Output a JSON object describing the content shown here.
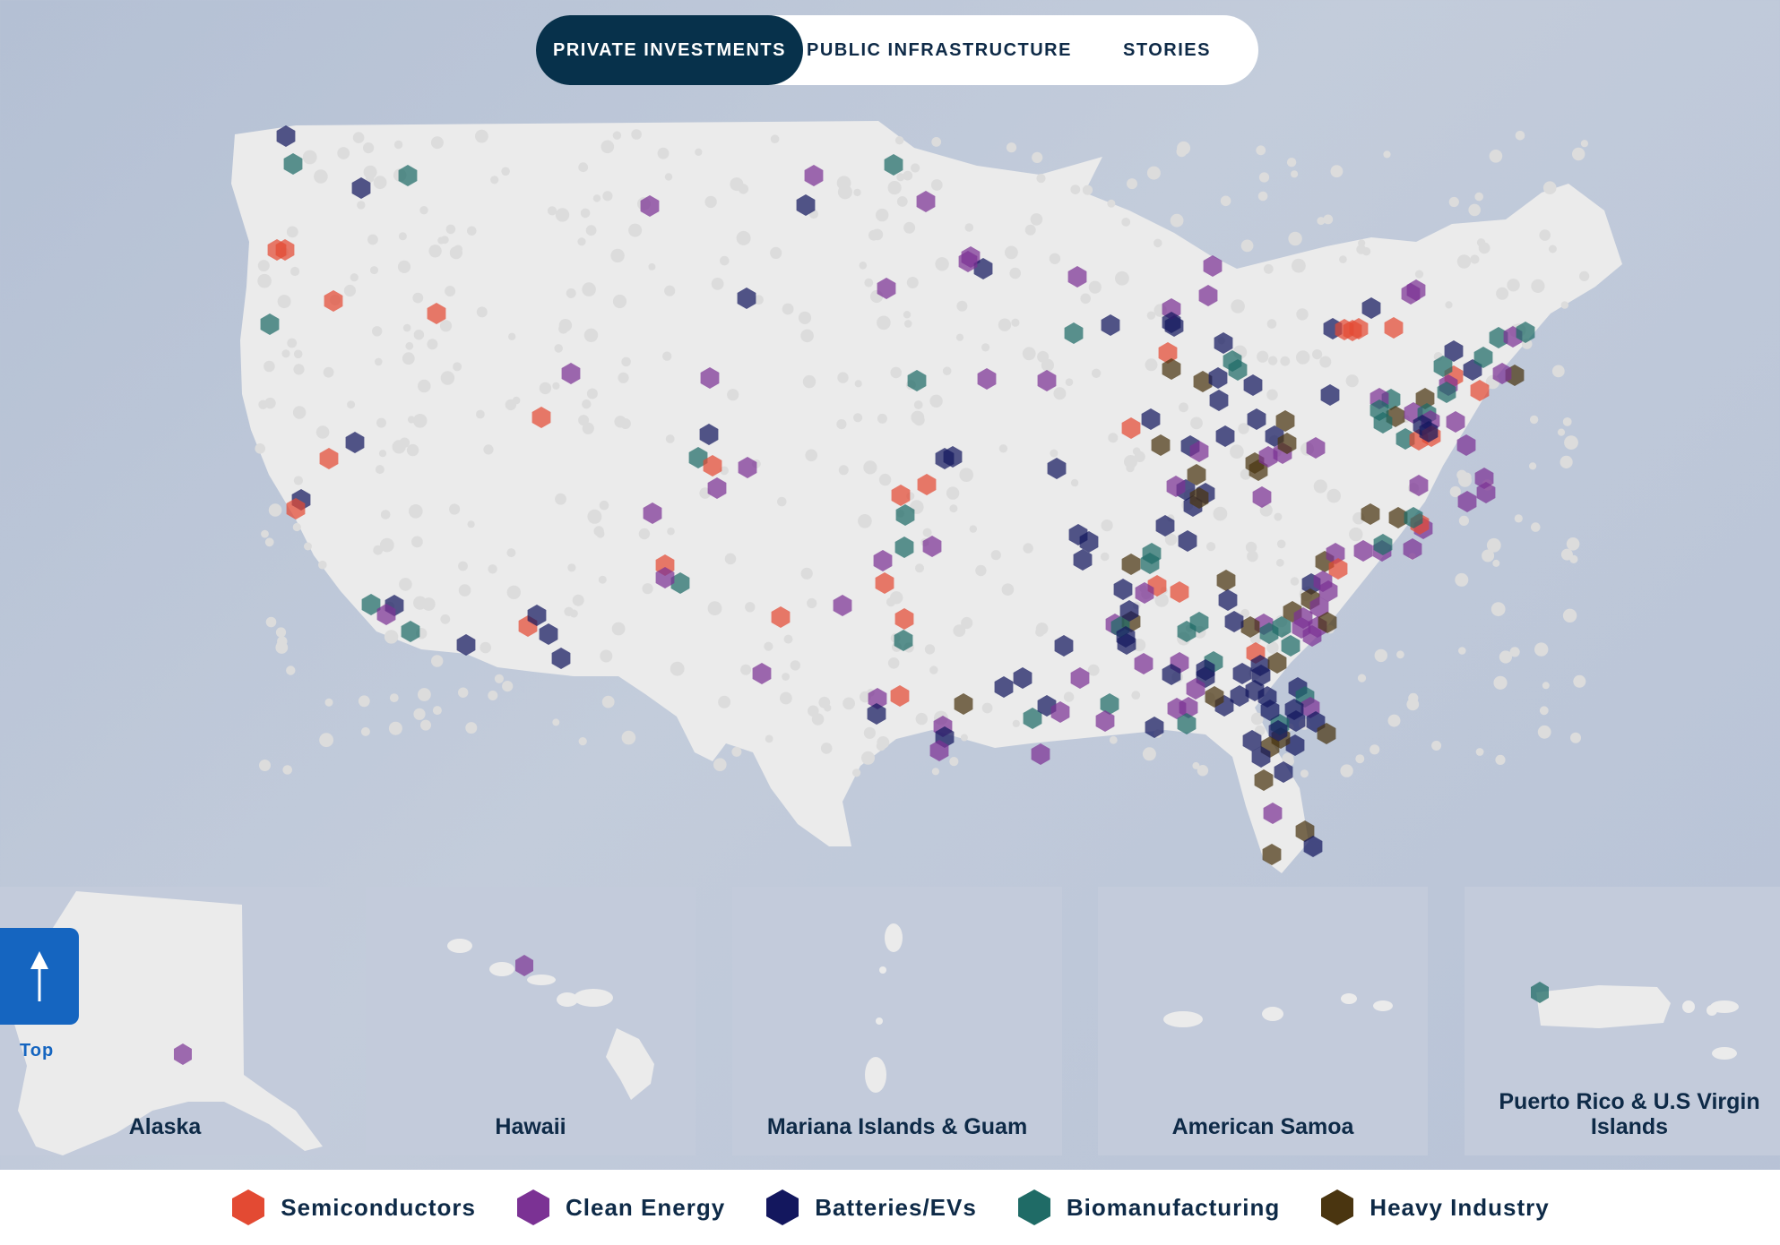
{
  "tabs": [
    {
      "label": "PRIVATE INVESTMENTS",
      "active": true
    },
    {
      "label": "PUBLIC INFRASTRUCTURE",
      "active": false
    },
    {
      "label": "STORIES",
      "active": false
    }
  ],
  "colors": {
    "semiconductors": "#e34a33",
    "clean_energy": "#7b3294",
    "batteries_evs": "#13175e",
    "biomanufacturing": "#1f6b66",
    "heavy_industry": "#4a3510",
    "land": "#ebebeb",
    "land_dot": "#dcdcdc",
    "tab_active": "#07314b",
    "top_button": "#1565c0"
  },
  "insets": [
    {
      "label": "Alaska"
    },
    {
      "label": "Hawaii"
    },
    {
      "label": "Mariana Islands & Guam"
    },
    {
      "label": "American Samoa"
    },
    {
      "label": "Puerto Rico & U.S Virgin Islands"
    }
  ],
  "top_button": {
    "label": "Top",
    "icon": "arrow-up-icon"
  },
  "legend": [
    {
      "key": "semiconductors",
      "label": "Semiconductors"
    },
    {
      "key": "clean_energy",
      "label": "Clean Energy"
    },
    {
      "key": "batteries_evs",
      "label": "Batteries/EVs"
    },
    {
      "key": "biomanufacturing",
      "label": "Biomanufacturing"
    },
    {
      "key": "heavy_industry",
      "label": "Heavy Industry"
    }
  ]
}
